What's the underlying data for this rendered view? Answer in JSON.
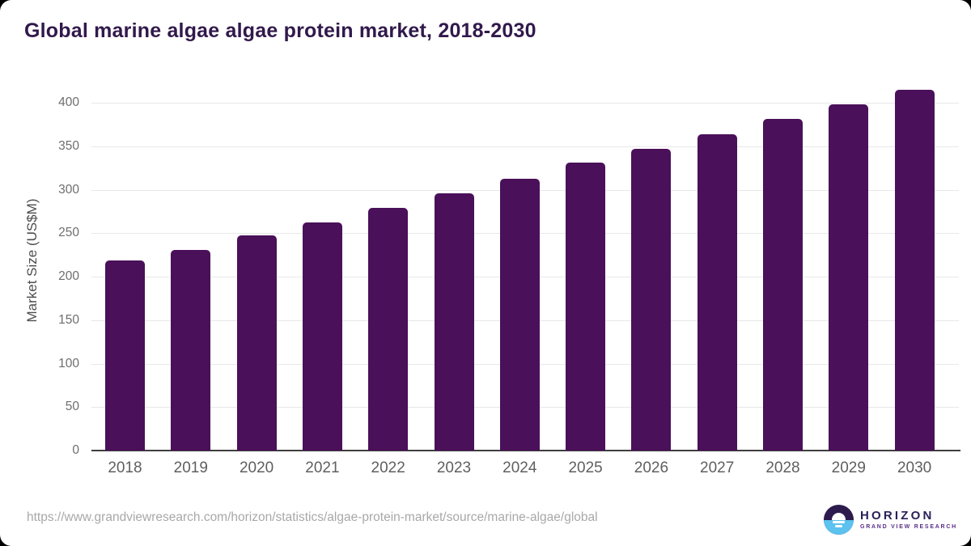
{
  "header": {
    "title": "Global marine algae algae protein market, 2018-2030"
  },
  "chart_data": {
    "type": "bar",
    "title": "Global marine algae algae protein market, 2018-2030",
    "categories": [
      "2018",
      "2019",
      "2020",
      "2021",
      "2022",
      "2023",
      "2024",
      "2025",
      "2026",
      "2027",
      "2028",
      "2029",
      "2030"
    ],
    "values": [
      219,
      231,
      247,
      262,
      279,
      296,
      313,
      331,
      347,
      364,
      381,
      398,
      415
    ],
    "xlabel": "",
    "ylabel": "Market Size (US$M)",
    "ylim": [
      0,
      430
    ],
    "yticks": [
      0,
      50,
      100,
      150,
      200,
      250,
      300,
      350,
      400
    ],
    "grid": true,
    "legend": "none",
    "bar_color": "#4a1059"
  },
  "footer": {
    "source_url": "https://www.grandviewresearch.com/horizon/statistics/algae-protein-market/source/marine-algae/global",
    "logo_name": "HORIZON",
    "logo_subtitle": "GRAND VIEW RESEARCH"
  },
  "colors": {
    "bar": "#4a1059",
    "title": "#31194b",
    "grid": "#e8e8e8",
    "axis_line": "#3f3f3f",
    "y_tick_text": "#6e6e6e",
    "x_tick_text": "#5f5f5f",
    "y_label_text": "#4d4d4d",
    "url_text": "#a8a8a8",
    "logo_dark_half": "#2d1b4e",
    "logo_blue_half": "#5cc2ef",
    "logo_wordmark": "#2b2158",
    "logo_subtext": "#5a2d87",
    "background": "#ffffff"
  }
}
